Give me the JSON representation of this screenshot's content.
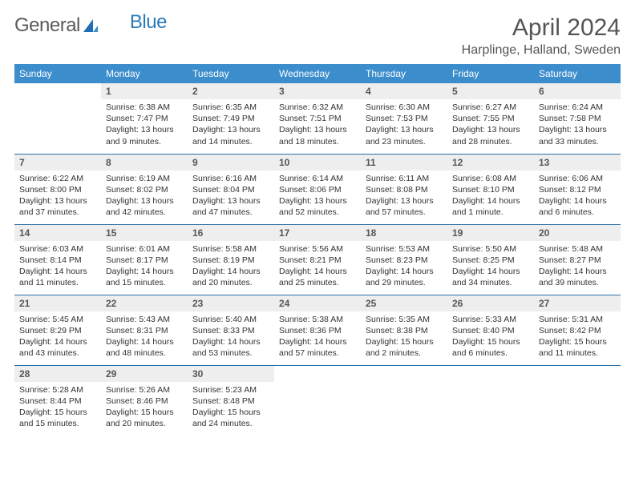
{
  "brand": {
    "part1": "General",
    "part2": "Blue"
  },
  "title": "April 2024",
  "location": "Harplinge, Halland, Sweden",
  "colors": {
    "header_bg": "#3c8dcc",
    "header_text": "#ffffff",
    "border": "#2a6fa8",
    "daynum_bg": "#eeeeee",
    "text": "#333333",
    "brand_gray": "#5a5a5a",
    "brand_blue": "#2a7ab9"
  },
  "weekdays": [
    "Sunday",
    "Monday",
    "Tuesday",
    "Wednesday",
    "Thursday",
    "Friday",
    "Saturday"
  ],
  "weeks": [
    [
      {
        "empty": true
      },
      {
        "day": "1",
        "sunrise": "Sunrise: 6:38 AM",
        "sunset": "Sunset: 7:47 PM",
        "daylight1": "Daylight: 13 hours",
        "daylight2": "and 9 minutes."
      },
      {
        "day": "2",
        "sunrise": "Sunrise: 6:35 AM",
        "sunset": "Sunset: 7:49 PM",
        "daylight1": "Daylight: 13 hours",
        "daylight2": "and 14 minutes."
      },
      {
        "day": "3",
        "sunrise": "Sunrise: 6:32 AM",
        "sunset": "Sunset: 7:51 PM",
        "daylight1": "Daylight: 13 hours",
        "daylight2": "and 18 minutes."
      },
      {
        "day": "4",
        "sunrise": "Sunrise: 6:30 AM",
        "sunset": "Sunset: 7:53 PM",
        "daylight1": "Daylight: 13 hours",
        "daylight2": "and 23 minutes."
      },
      {
        "day": "5",
        "sunrise": "Sunrise: 6:27 AM",
        "sunset": "Sunset: 7:55 PM",
        "daylight1": "Daylight: 13 hours",
        "daylight2": "and 28 minutes."
      },
      {
        "day": "6",
        "sunrise": "Sunrise: 6:24 AM",
        "sunset": "Sunset: 7:58 PM",
        "daylight1": "Daylight: 13 hours",
        "daylight2": "and 33 minutes."
      }
    ],
    [
      {
        "day": "7",
        "sunrise": "Sunrise: 6:22 AM",
        "sunset": "Sunset: 8:00 PM",
        "daylight1": "Daylight: 13 hours",
        "daylight2": "and 37 minutes."
      },
      {
        "day": "8",
        "sunrise": "Sunrise: 6:19 AM",
        "sunset": "Sunset: 8:02 PM",
        "daylight1": "Daylight: 13 hours",
        "daylight2": "and 42 minutes."
      },
      {
        "day": "9",
        "sunrise": "Sunrise: 6:16 AM",
        "sunset": "Sunset: 8:04 PM",
        "daylight1": "Daylight: 13 hours",
        "daylight2": "and 47 minutes."
      },
      {
        "day": "10",
        "sunrise": "Sunrise: 6:14 AM",
        "sunset": "Sunset: 8:06 PM",
        "daylight1": "Daylight: 13 hours",
        "daylight2": "and 52 minutes."
      },
      {
        "day": "11",
        "sunrise": "Sunrise: 6:11 AM",
        "sunset": "Sunset: 8:08 PM",
        "daylight1": "Daylight: 13 hours",
        "daylight2": "and 57 minutes."
      },
      {
        "day": "12",
        "sunrise": "Sunrise: 6:08 AM",
        "sunset": "Sunset: 8:10 PM",
        "daylight1": "Daylight: 14 hours",
        "daylight2": "and 1 minute."
      },
      {
        "day": "13",
        "sunrise": "Sunrise: 6:06 AM",
        "sunset": "Sunset: 8:12 PM",
        "daylight1": "Daylight: 14 hours",
        "daylight2": "and 6 minutes."
      }
    ],
    [
      {
        "day": "14",
        "sunrise": "Sunrise: 6:03 AM",
        "sunset": "Sunset: 8:14 PM",
        "daylight1": "Daylight: 14 hours",
        "daylight2": "and 11 minutes."
      },
      {
        "day": "15",
        "sunrise": "Sunrise: 6:01 AM",
        "sunset": "Sunset: 8:17 PM",
        "daylight1": "Daylight: 14 hours",
        "daylight2": "and 15 minutes."
      },
      {
        "day": "16",
        "sunrise": "Sunrise: 5:58 AM",
        "sunset": "Sunset: 8:19 PM",
        "daylight1": "Daylight: 14 hours",
        "daylight2": "and 20 minutes."
      },
      {
        "day": "17",
        "sunrise": "Sunrise: 5:56 AM",
        "sunset": "Sunset: 8:21 PM",
        "daylight1": "Daylight: 14 hours",
        "daylight2": "and 25 minutes."
      },
      {
        "day": "18",
        "sunrise": "Sunrise: 5:53 AM",
        "sunset": "Sunset: 8:23 PM",
        "daylight1": "Daylight: 14 hours",
        "daylight2": "and 29 minutes."
      },
      {
        "day": "19",
        "sunrise": "Sunrise: 5:50 AM",
        "sunset": "Sunset: 8:25 PM",
        "daylight1": "Daylight: 14 hours",
        "daylight2": "and 34 minutes."
      },
      {
        "day": "20",
        "sunrise": "Sunrise: 5:48 AM",
        "sunset": "Sunset: 8:27 PM",
        "daylight1": "Daylight: 14 hours",
        "daylight2": "and 39 minutes."
      }
    ],
    [
      {
        "day": "21",
        "sunrise": "Sunrise: 5:45 AM",
        "sunset": "Sunset: 8:29 PM",
        "daylight1": "Daylight: 14 hours",
        "daylight2": "and 43 minutes."
      },
      {
        "day": "22",
        "sunrise": "Sunrise: 5:43 AM",
        "sunset": "Sunset: 8:31 PM",
        "daylight1": "Daylight: 14 hours",
        "daylight2": "and 48 minutes."
      },
      {
        "day": "23",
        "sunrise": "Sunrise: 5:40 AM",
        "sunset": "Sunset: 8:33 PM",
        "daylight1": "Daylight: 14 hours",
        "daylight2": "and 53 minutes."
      },
      {
        "day": "24",
        "sunrise": "Sunrise: 5:38 AM",
        "sunset": "Sunset: 8:36 PM",
        "daylight1": "Daylight: 14 hours",
        "daylight2": "and 57 minutes."
      },
      {
        "day": "25",
        "sunrise": "Sunrise: 5:35 AM",
        "sunset": "Sunset: 8:38 PM",
        "daylight1": "Daylight: 15 hours",
        "daylight2": "and 2 minutes."
      },
      {
        "day": "26",
        "sunrise": "Sunrise: 5:33 AM",
        "sunset": "Sunset: 8:40 PM",
        "daylight1": "Daylight: 15 hours",
        "daylight2": "and 6 minutes."
      },
      {
        "day": "27",
        "sunrise": "Sunrise: 5:31 AM",
        "sunset": "Sunset: 8:42 PM",
        "daylight1": "Daylight: 15 hours",
        "daylight2": "and 11 minutes."
      }
    ],
    [
      {
        "day": "28",
        "sunrise": "Sunrise: 5:28 AM",
        "sunset": "Sunset: 8:44 PM",
        "daylight1": "Daylight: 15 hours",
        "daylight2": "and 15 minutes."
      },
      {
        "day": "29",
        "sunrise": "Sunrise: 5:26 AM",
        "sunset": "Sunset: 8:46 PM",
        "daylight1": "Daylight: 15 hours",
        "daylight2": "and 20 minutes."
      },
      {
        "day": "30",
        "sunrise": "Sunrise: 5:23 AM",
        "sunset": "Sunset: 8:48 PM",
        "daylight1": "Daylight: 15 hours",
        "daylight2": "and 24 minutes."
      },
      {
        "empty": true
      },
      {
        "empty": true
      },
      {
        "empty": true
      },
      {
        "empty": true
      }
    ]
  ]
}
